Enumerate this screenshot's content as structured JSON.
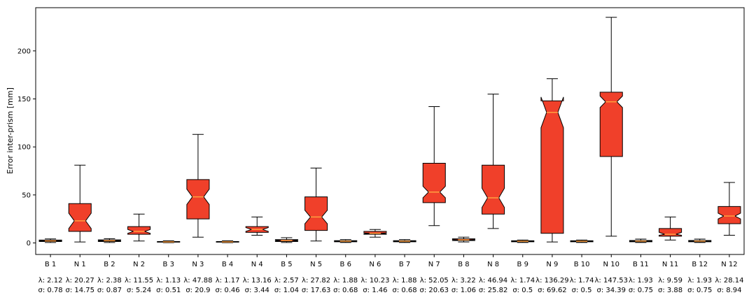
{
  "chart_data": {
    "type": "boxplot",
    "ylabel": "Error inter-prism [mm]",
    "xlabel": "",
    "title": "",
    "ylim": [
      -12,
      245
    ],
    "yticks": [
      0,
      50,
      100,
      150,
      200
    ],
    "grid": false,
    "notched": true,
    "box_color": "#f0402a",
    "median_color": "#ffa040",
    "categories": [
      "B 1",
      "N 1",
      "B 2",
      "N 2",
      "B 3",
      "N 3",
      "B 4",
      "N 4",
      "B 5",
      "N 5",
      "B 6",
      "N 6",
      "B 7",
      "N 7",
      "B 8",
      "N 8",
      "B 9",
      "N 9",
      "B 10",
      "N 10",
      "B 11",
      "N 11",
      "B 12",
      "N 12"
    ],
    "boxes": [
      {
        "whislo": 0.5,
        "q1": 1.5,
        "med": 2.1,
        "q3": 3.0,
        "whishi": 4.2,
        "notchlo": 1.8,
        "notchhi": 2.4
      },
      {
        "whislo": 1,
        "q1": 12,
        "med": 23,
        "q3": 41,
        "whishi": 81,
        "notchlo": 15,
        "notchhi": 31
      },
      {
        "whislo": 0.5,
        "q1": 1.5,
        "med": 2.3,
        "q3": 3.2,
        "whishi": 4.5,
        "notchlo": 1.9,
        "notchhi": 2.7
      },
      {
        "whislo": 2,
        "q1": 9,
        "med": 12,
        "q3": 17,
        "whishi": 30,
        "notchlo": 10,
        "notchhi": 14
      },
      {
        "whislo": 0.3,
        "q1": 0.8,
        "med": 1.1,
        "q3": 1.5,
        "whishi": 2.2,
        "notchlo": 0.9,
        "notchhi": 1.3
      },
      {
        "whislo": 6,
        "q1": 25,
        "med": 48,
        "q3": 66,
        "whishi": 113,
        "notchlo": 40,
        "notchhi": 56
      },
      {
        "whislo": 0.3,
        "q1": 0.8,
        "med": 1.1,
        "q3": 1.5,
        "whishi": 2.2,
        "notchlo": 0.9,
        "notchhi": 1.3
      },
      {
        "whislo": 8,
        "q1": 11,
        "med": 14,
        "q3": 17,
        "whishi": 27,
        "notchlo": 12,
        "notchhi": 16
      },
      {
        "whislo": 0.5,
        "q1": 1.5,
        "med": 2.5,
        "q3": 3.5,
        "whishi": 5.5,
        "notchlo": 2,
        "notchhi": 3
      },
      {
        "whislo": 2,
        "q1": 13,
        "med": 27,
        "q3": 48,
        "whishi": 78,
        "notchlo": 20,
        "notchhi": 34
      },
      {
        "whislo": 0.5,
        "q1": 1.2,
        "med": 1.8,
        "q3": 2.4,
        "whishi": 3.5,
        "notchlo": 1.5,
        "notchhi": 2.1
      },
      {
        "whislo": 6,
        "q1": 9,
        "med": 10,
        "q3": 12,
        "whishi": 14,
        "notchlo": 9.5,
        "notchhi": 10.5
      },
      {
        "whislo": 0.5,
        "q1": 1.2,
        "med": 1.8,
        "q3": 2.4,
        "whishi": 3.5,
        "notchlo": 1.5,
        "notchhi": 2.1
      },
      {
        "whislo": 18,
        "q1": 42,
        "med": 53,
        "q3": 83,
        "whishi": 142,
        "notchlo": 47,
        "notchhi": 59
      },
      {
        "whislo": 1,
        "q1": 2.5,
        "med": 3.2,
        "q3": 4.3,
        "whishi": 6,
        "notchlo": 2.8,
        "notchhi": 3.6
      },
      {
        "whislo": 15,
        "q1": 30,
        "med": 47,
        "q3": 81,
        "whishi": 155,
        "notchlo": 37,
        "notchhi": 57
      },
      {
        "whislo": 0.5,
        "q1": 1.2,
        "med": 1.7,
        "q3": 2.3,
        "whishi": 3,
        "notchlo": 1.5,
        "notchhi": 1.9
      },
      {
        "whislo": 1,
        "q1": 10,
        "med": 136,
        "q3": 148,
        "whishi": 171,
        "notchlo": 120,
        "notchhi": 152
      },
      {
        "whislo": 0.5,
        "q1": 1.2,
        "med": 1.7,
        "q3": 2.3,
        "whishi": 3,
        "notchlo": 1.5,
        "notchhi": 1.9
      },
      {
        "whislo": 7,
        "q1": 90,
        "med": 147,
        "q3": 157,
        "whishi": 235,
        "notchlo": 141,
        "notchhi": 153
      },
      {
        "whislo": 0.5,
        "q1": 1.2,
        "med": 1.9,
        "q3": 2.6,
        "whishi": 4,
        "notchlo": 1.6,
        "notchhi": 2.2
      },
      {
        "whislo": 3,
        "q1": 7,
        "med": 9,
        "q3": 15,
        "whishi": 27,
        "notchlo": 8,
        "notchhi": 11
      },
      {
        "whislo": 0.5,
        "q1": 1.2,
        "med": 1.9,
        "q3": 2.6,
        "whishi": 4,
        "notchlo": 1.6,
        "notchhi": 2.2
      },
      {
        "whislo": 8,
        "q1": 20,
        "med": 28,
        "q3": 38,
        "whishi": 63,
        "notchlo": 25,
        "notchhi": 31
      }
    ],
    "annotations": [
      {
        "lambda": "λ: 2.12",
        "sigma": "σ: 0.78"
      },
      {
        "lambda": "λ: 20.27",
        "sigma": "σ: 14.75"
      },
      {
        "lambda": "λ: 2.38",
        "sigma": "σ: 0.87"
      },
      {
        "lambda": "λ: 11.55",
        "sigma": "σ: 5.24"
      },
      {
        "lambda": "λ: 1.13",
        "sigma": "σ: 0.51"
      },
      {
        "lambda": "λ: 47.88",
        "sigma": "σ: 20.9"
      },
      {
        "lambda": "λ: 1.17",
        "sigma": "σ: 0.46"
      },
      {
        "lambda": "λ: 13.16",
        "sigma": "σ: 3.44"
      },
      {
        "lambda": "λ: 2.57",
        "sigma": "σ: 1.04"
      },
      {
        "lambda": "λ: 27.82",
        "sigma": "σ: 17.63"
      },
      {
        "lambda": "λ: 1.88",
        "sigma": "σ: 0.68"
      },
      {
        "lambda": "λ: 10.23",
        "sigma": "σ: 1.46"
      },
      {
        "lambda": "λ: 1.88",
        "sigma": "σ: 0.68"
      },
      {
        "lambda": "λ: 52.05",
        "sigma": "σ: 20.63"
      },
      {
        "lambda": "λ: 3.22",
        "sigma": "σ: 1.06"
      },
      {
        "lambda": "λ: 46.94",
        "sigma": "σ: 25.82"
      },
      {
        "lambda": "λ: 1.74",
        "sigma": "σ: 0.5"
      },
      {
        "lambda": "λ: 136.29",
        "sigma": "σ: 69.62"
      },
      {
        "lambda": "λ: 1.74",
        "sigma": "σ: 0.5"
      },
      {
        "lambda": "λ: 147.53",
        "sigma": "σ: 34.39"
      },
      {
        "lambda": "λ: 1.93",
        "sigma": "σ: 0.75"
      },
      {
        "lambda": "λ: 9.59",
        "sigma": "σ: 3.88"
      },
      {
        "lambda": "λ: 1.93",
        "sigma": "σ: 0.75"
      },
      {
        "lambda": "λ: 28.14",
        "sigma": "σ: 8.94"
      }
    ]
  }
}
